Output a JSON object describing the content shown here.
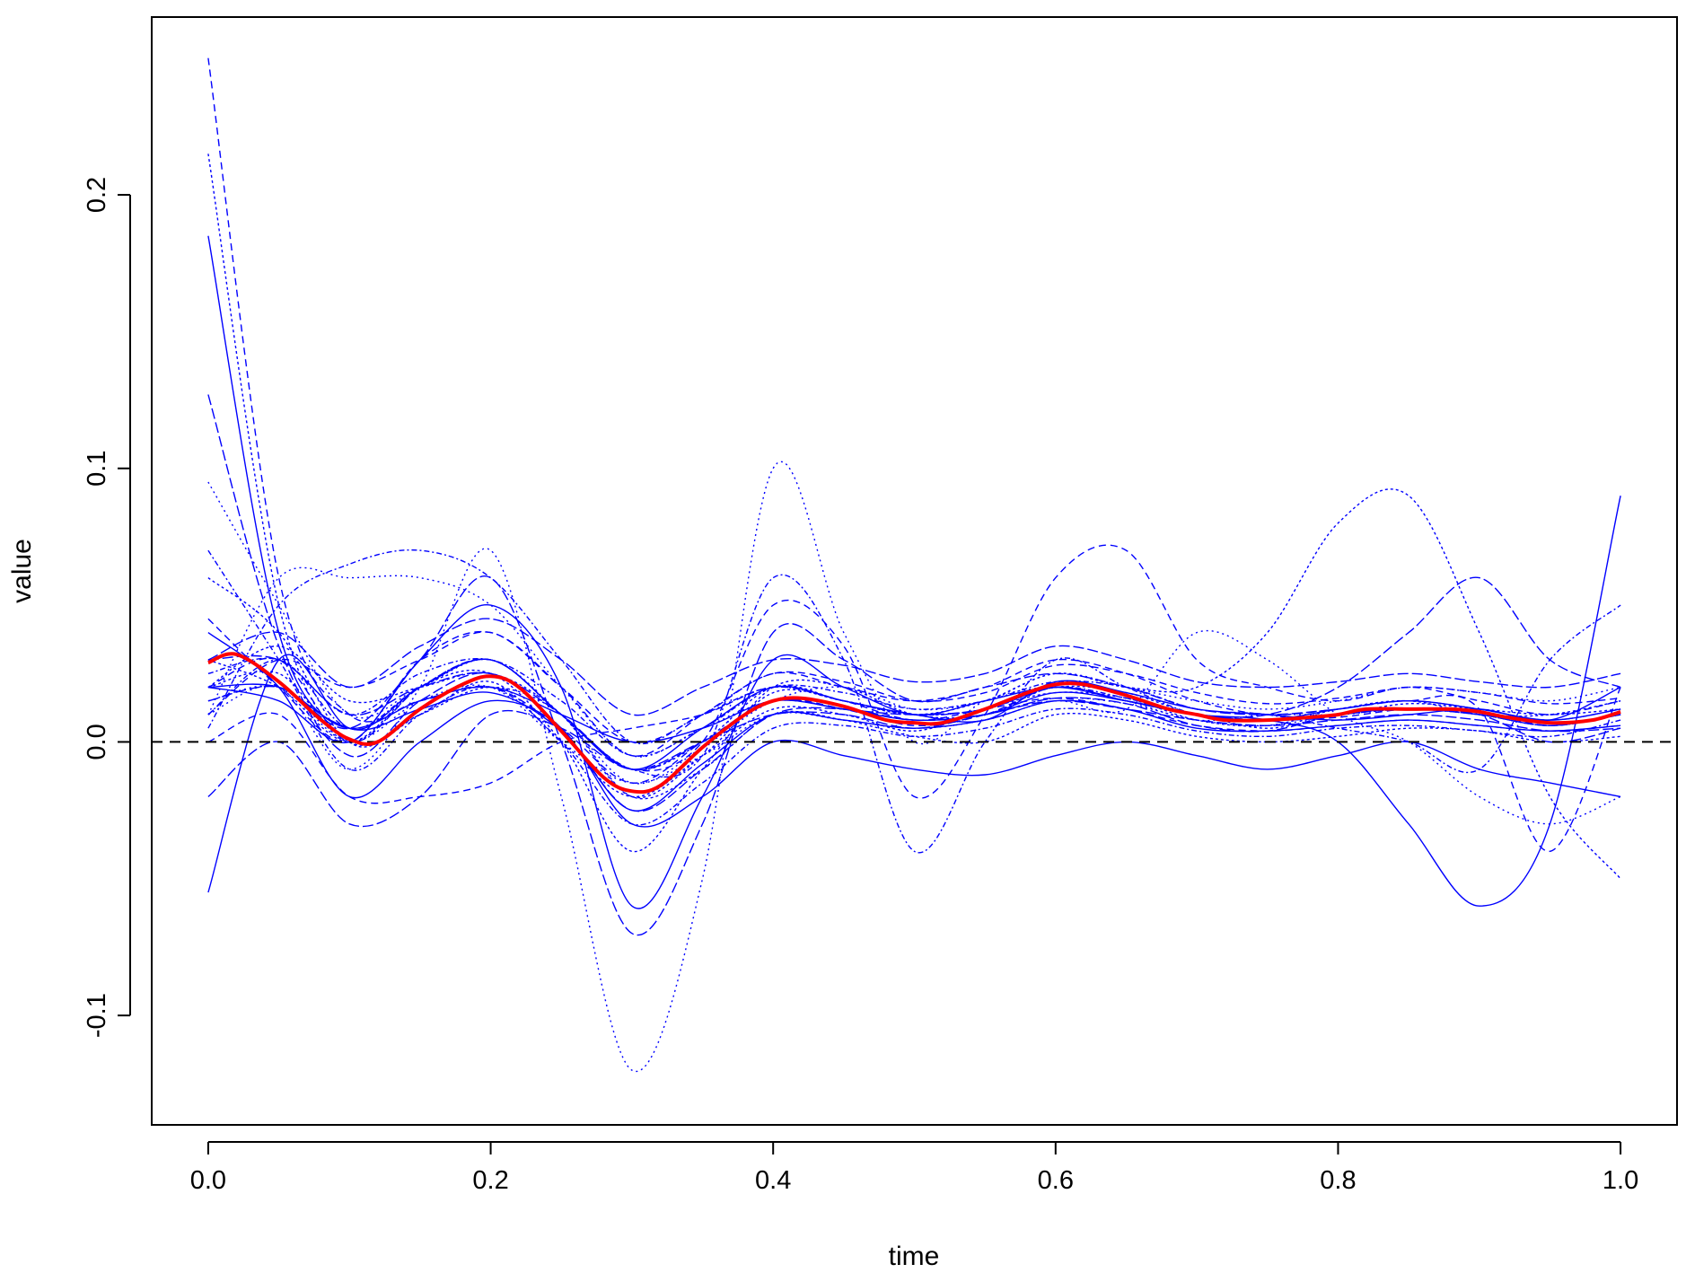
{
  "chart_data": {
    "type": "line",
    "title": "",
    "xlabel": "time",
    "ylabel": "value",
    "xlim": [
      -0.04,
      1.04
    ],
    "ylim": [
      -0.14,
      0.265
    ],
    "x_ticks": [
      0.0,
      0.2,
      0.4,
      0.6,
      0.8,
      1.0
    ],
    "x_tick_labels": [
      "0.0",
      "0.2",
      "0.4",
      "0.6",
      "0.8",
      "1.0"
    ],
    "y_ticks": [
      -0.1,
      0.0,
      0.1,
      0.2
    ],
    "y_tick_labels": [
      "-0.1",
      "0.0",
      "0.1",
      "0.2"
    ],
    "grid": false,
    "legend": "none",
    "reference_line": {
      "y": 0.0,
      "style": "dashed",
      "color": "#000000"
    },
    "colors": {
      "curves": "#0000ff",
      "mean": "#ff0000"
    },
    "mean_curve": {
      "x": [
        0.0,
        0.02,
        0.05,
        0.08,
        0.1,
        0.12,
        0.15,
        0.18,
        0.2,
        0.22,
        0.25,
        0.28,
        0.3,
        0.32,
        0.35,
        0.38,
        0.4,
        0.42,
        0.45,
        0.48,
        0.5,
        0.52,
        0.55,
        0.58,
        0.6,
        0.62,
        0.65,
        0.68,
        0.7,
        0.72,
        0.75,
        0.78,
        0.8,
        0.82,
        0.85,
        0.88,
        0.9,
        0.92,
        0.95,
        0.98,
        1.0
      ],
      "y": [
        0.029,
        0.032,
        0.022,
        0.008,
        0.001,
        0.0,
        0.012,
        0.021,
        0.024,
        0.02,
        0.004,
        -0.013,
        -0.018,
        -0.016,
        -0.002,
        0.01,
        0.015,
        0.016,
        0.013,
        0.008,
        0.007,
        0.007,
        0.012,
        0.018,
        0.021,
        0.021,
        0.017,
        0.012,
        0.01,
        0.008,
        0.008,
        0.009,
        0.01,
        0.012,
        0.012,
        0.012,
        0.011,
        0.009,
        0.007,
        0.008,
        0.011
      ]
    },
    "individual_curves": {
      "x": [
        0.0,
        0.05,
        0.1,
        0.15,
        0.2,
        0.25,
        0.3,
        0.35,
        0.4,
        0.45,
        0.5,
        0.55,
        0.6,
        0.65,
        0.7,
        0.75,
        0.8,
        0.85,
        0.9,
        0.95,
        1.0
      ],
      "series": [
        {
          "values": [
            0.25,
            0.06,
            0.01,
            0.015,
            0.02,
            0.005,
            -0.015,
            0.0,
            0.015,
            0.012,
            0.006,
            0.01,
            0.02,
            0.015,
            0.01,
            0.008,
            0.009,
            0.012,
            0.011,
            0.006,
            0.01
          ]
        },
        {
          "values": [
            0.215,
            0.05,
            0.0,
            0.01,
            0.022,
            0.0,
            -0.02,
            -0.005,
            0.012,
            0.01,
            0.004,
            0.012,
            0.018,
            0.016,
            0.008,
            0.006,
            0.012,
            0.015,
            0.01,
            0.01,
            0.015
          ]
        },
        {
          "values": [
            0.185,
            0.04,
            0.005,
            0.02,
            0.03,
            0.01,
            -0.01,
            0.005,
            0.02,
            0.015,
            0.01,
            0.008,
            0.022,
            0.018,
            0.012,
            0.01,
            0.008,
            0.01,
            0.012,
            0.008,
            0.02
          ]
        },
        {
          "values": [
            0.127,
            0.035,
            -0.005,
            0.015,
            0.025,
            0.005,
            -0.025,
            -0.01,
            0.01,
            0.012,
            0.008,
            0.01,
            0.016,
            0.014,
            0.006,
            0.004,
            0.01,
            0.012,
            0.01,
            0.0,
            0.005
          ]
        },
        {
          "values": [
            0.095,
            0.05,
            0.01,
            0.02,
            0.03,
            0.01,
            -0.015,
            -0.002,
            0.015,
            0.02,
            0.012,
            0.015,
            0.025,
            0.02,
            0.015,
            0.012,
            0.015,
            0.02,
            0.018,
            0.015,
            0.02
          ]
        },
        {
          "values": [
            0.07,
            0.03,
            -0.01,
            0.01,
            0.02,
            0.0,
            -0.03,
            -0.015,
            0.005,
            0.006,
            0.002,
            0.005,
            0.012,
            0.01,
            0.004,
            0.002,
            0.005,
            0.006,
            0.004,
            0.002,
            0.008
          ]
        },
        {
          "values": [
            0.045,
            0.02,
            0.0,
            0.03,
            0.04,
            0.02,
            -0.005,
            0.01,
            0.025,
            0.022,
            0.015,
            0.018,
            0.028,
            0.025,
            0.018,
            0.014,
            0.016,
            0.02,
            0.018,
            0.014,
            0.016
          ]
        },
        {
          "values": [
            0.02,
            0.035,
            0.015,
            0.02,
            0.025,
            0.01,
            -0.02,
            -0.005,
            0.018,
            0.015,
            0.01,
            0.012,
            0.02,
            0.018,
            0.01,
            0.008,
            0.01,
            0.014,
            0.012,
            0.01,
            0.012
          ]
        },
        {
          "values": [
            -0.055,
            0.03,
            0.005,
            0.012,
            0.018,
            0.004,
            -0.025,
            -0.008,
            0.01,
            0.008,
            0.005,
            0.008,
            0.015,
            0.012,
            0.005,
            0.004,
            0.006,
            0.008,
            0.006,
            0.004,
            0.006
          ]
        },
        {
          "values": [
            -0.02,
            0.0,
            -0.03,
            -0.02,
            0.01,
            0.005,
            -0.01,
            0.0,
            0.01,
            0.01,
            0.005,
            0.01,
            0.015,
            0.012,
            0.008,
            0.006,
            0.008,
            0.01,
            0.008,
            0.004,
            0.005
          ]
        },
        {
          "values": [
            0.01,
            0.06,
            0.06,
            0.06,
            0.05,
            0.02,
            -0.005,
            0.005,
            0.015,
            0.012,
            0.008,
            0.01,
            0.016,
            0.014,
            0.008,
            0.006,
            0.01,
            0.012,
            0.01,
            0.006,
            0.01
          ]
        },
        {
          "values": [
            0.005,
            0.05,
            0.065,
            0.07,
            0.06,
            0.03,
            0.0,
            0.01,
            0.02,
            0.015,
            0.01,
            0.012,
            0.02,
            0.016,
            0.01,
            0.008,
            0.01,
            0.012,
            0.01,
            0.006,
            0.01
          ]
        },
        {
          "values": [
            0.0,
            0.01,
            -0.02,
            -0.02,
            -0.015,
            0.0,
            0.005,
            0.01,
            0.02,
            0.015,
            0.008,
            0.012,
            0.016,
            0.012,
            0.006,
            0.004,
            0.006,
            0.008,
            0.006,
            0.004,
            0.006
          ]
        },
        {
          "values": [
            0.03,
            0.02,
            0.0,
            0.02,
            0.025,
            0.0,
            -0.04,
            -0.01,
            0.02,
            0.02,
            0.01,
            0.01,
            0.02,
            0.015,
            0.01,
            0.005,
            0.01,
            0.012,
            0.01,
            0.006,
            0.01
          ]
        },
        {
          "values": [
            0.02,
            0.015,
            0.0,
            0.03,
            0.05,
            0.02,
            -0.06,
            -0.02,
            0.03,
            0.02,
            0.01,
            0.015,
            0.02,
            0.015,
            0.01,
            0.008,
            0.012,
            0.015,
            0.012,
            0.008,
            0.012
          ]
        },
        {
          "values": [
            0.015,
            0.02,
            0.005,
            0.03,
            0.06,
            0.0,
            -0.07,
            -0.03,
            0.04,
            0.03,
            0.015,
            0.02,
            0.025,
            0.02,
            0.012,
            0.01,
            0.012,
            0.015,
            0.012,
            0.008,
            0.012
          ]
        },
        {
          "values": [
            0.01,
            0.02,
            -0.01,
            0.02,
            0.07,
            -0.02,
            -0.12,
            -0.05,
            0.1,
            0.04,
            0.0,
            0.015,
            0.02,
            0.015,
            0.008,
            0.01,
            0.01,
            0.012,
            0.01,
            0.006,
            0.01
          ]
        },
        {
          "values": [
            0.01,
            0.03,
            0.005,
            0.02,
            0.03,
            0.01,
            -0.01,
            -0.005,
            0.06,
            0.03,
            -0.04,
            0.0,
            0.03,
            0.02,
            0.01,
            0.008,
            0.01,
            0.012,
            0.01,
            0.006,
            0.01
          ]
        },
        {
          "values": [
            0.02,
            0.03,
            0.0,
            0.02,
            0.03,
            0.01,
            -0.01,
            0.0,
            0.05,
            0.035,
            -0.02,
            0.01,
            0.06,
            0.07,
            0.03,
            0.02,
            0.015,
            0.02,
            0.015,
            0.01,
            0.015
          ]
        },
        {
          "values": [
            0.02,
            0.025,
            0.0,
            0.02,
            0.03,
            0.01,
            -0.01,
            0.0,
            0.02,
            0.015,
            0.01,
            0.015,
            0.025,
            0.02,
            0.02,
            0.04,
            0.08,
            0.09,
            0.04,
            -0.02,
            -0.05
          ]
        },
        {
          "values": [
            0.02,
            0.02,
            0.005,
            0.015,
            0.02,
            0.01,
            0.0,
            0.005,
            0.015,
            0.012,
            0.008,
            0.01,
            0.018,
            0.015,
            0.01,
            0.008,
            0.0,
            -0.03,
            -0.06,
            -0.03,
            0.09
          ]
        },
        {
          "values": [
            0.03,
            0.03,
            0.01,
            0.02,
            0.025,
            0.01,
            -0.01,
            0.0,
            0.015,
            0.012,
            0.01,
            0.012,
            0.02,
            0.015,
            0.01,
            0.01,
            0.02,
            0.04,
            0.06,
            0.03,
            0.02
          ]
        },
        {
          "values": [
            0.015,
            0.02,
            0.0,
            0.015,
            0.02,
            0.0,
            -0.015,
            -0.005,
            0.01,
            0.008,
            0.005,
            0.008,
            0.015,
            0.012,
            0.04,
            0.03,
            0.01,
            0.0,
            -0.02,
            -0.03,
            -0.02
          ]
        },
        {
          "values": [
            0.025,
            0.03,
            0.01,
            0.025,
            0.03,
            0.015,
            -0.005,
            0.005,
            0.02,
            0.018,
            0.012,
            0.015,
            0.022,
            0.02,
            0.012,
            0.01,
            0.005,
            0.0,
            -0.01,
            0.03,
            0.05
          ]
        },
        {
          "values": [
            0.01,
            0.03,
            0.02,
            0.03,
            0.04,
            0.02,
            0.0,
            0.01,
            0.025,
            0.02,
            0.015,
            0.02,
            0.03,
            0.025,
            0.015,
            0.01,
            0.012,
            0.015,
            0.012,
            -0.04,
            0.02
          ]
        },
        {
          "values": [
            0.06,
            0.04,
            0.0,
            0.01,
            0.02,
            0.01,
            -0.02,
            -0.01,
            0.01,
            0.008,
            0.002,
            0.0,
            0.01,
            0.008,
            0.002,
            0.0,
            0.002,
            0.005,
            0.004,
            0.0,
            0.002
          ]
        },
        {
          "values": [
            0.04,
            0.02,
            -0.02,
            0.0,
            0.015,
            0.005,
            -0.03,
            -0.02,
            0.0,
            -0.005,
            -0.01,
            -0.012,
            -0.005,
            0.0,
            -0.005,
            -0.01,
            -0.005,
            0.0,
            -0.01,
            -0.015,
            -0.02
          ]
        },
        {
          "values": [
            0.03,
            0.04,
            0.02,
            0.035,
            0.045,
            0.03,
            0.01,
            0.02,
            0.03,
            0.028,
            0.022,
            0.025,
            0.035,
            0.03,
            0.022,
            0.02,
            0.022,
            0.025,
            0.022,
            0.02,
            0.025
          ]
        }
      ]
    }
  }
}
